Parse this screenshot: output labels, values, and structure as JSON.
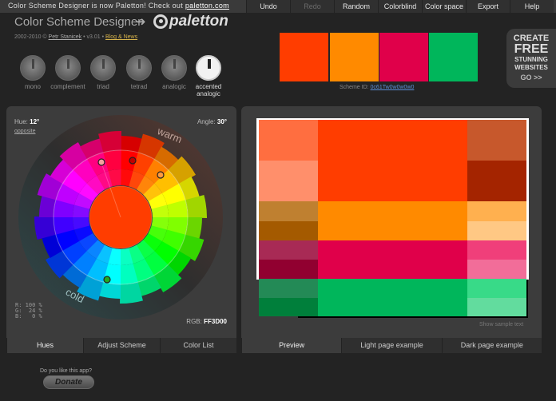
{
  "announcement": {
    "text": "Color Scheme Designer is now Paletton! Check out ",
    "link": "paletton.com"
  },
  "menu": [
    {
      "label": "Undo",
      "dim": false
    },
    {
      "label": "Redo",
      "dim": true
    },
    {
      "label": "Random",
      "dim": false
    },
    {
      "label": "Colorblind",
      "dim": false
    },
    {
      "label": "Color space",
      "dim": false
    },
    {
      "label": "Export",
      "dim": false
    },
    {
      "label": "Help",
      "dim": false
    }
  ],
  "header": {
    "app_title": "Color Scheme Designer",
    "arrow": "➜",
    "logo_text": "paletton"
  },
  "credits": {
    "years": "2002-2010 ©",
    "author": "Petr Stanicek",
    "version": "• v3.01 •",
    "blog": "Blog & News"
  },
  "modes": [
    {
      "label": "mono"
    },
    {
      "label": "complement"
    },
    {
      "label": "triad"
    },
    {
      "label": "tetrad"
    },
    {
      "label": "analogic"
    },
    {
      "label": "accented analogic",
      "active": true
    }
  ],
  "base_swatches": [
    "#FF3D00",
    "#FF8A00",
    "#E0004A",
    "#00B65B"
  ],
  "scheme_id": {
    "label": "Scheme ID:",
    "value": "0c61Tw0w0w0w0"
  },
  "promo": {
    "l1": "CREATE",
    "l2": "FREE",
    "l3": "STUNNING",
    "l4": "WEBSITES",
    "l5": "GO >>"
  },
  "wheel": {
    "hue_label": "Hue:",
    "hue_value": "12°",
    "opposite": "opposite",
    "angle_label": "Angle:",
    "angle_value": "30°",
    "warm": "warm",
    "cold": "cold",
    "rgb_lines": "R: 100 %\nG:  24 %\nB:   0 %",
    "rgb_label": "RGB:",
    "rgb_hex": "FF3D00",
    "center_color": "#FF3D00"
  },
  "preview_colors": {
    "primary": [
      "#FF3D00",
      "#FF6E40",
      "#FF8F6B",
      "#C7582C",
      "#A42400"
    ],
    "secondary1": [
      "#FF8A00",
      "#BF8030",
      "#A45A00",
      "#FFB04F",
      "#FFC884"
    ],
    "secondary2": [
      "#E0004A",
      "#A82A55",
      "#910030",
      "#F03F7A",
      "#F26D99"
    ],
    "complement": [
      "#00B65B",
      "#238A56",
      "#007F3B",
      "#38DA88",
      "#62DC9E"
    ]
  },
  "sample_note": "Show sample text",
  "left_tabs": [
    {
      "label": "Hues",
      "active": true
    },
    {
      "label": "Adjust Scheme"
    },
    {
      "label": "Color List"
    }
  ],
  "right_tabs": [
    {
      "label": "Preview",
      "active": true
    },
    {
      "label": "Light page example"
    },
    {
      "label": "Dark page example"
    }
  ],
  "donate": {
    "question": "Do you like this app?",
    "button": "Donate"
  }
}
